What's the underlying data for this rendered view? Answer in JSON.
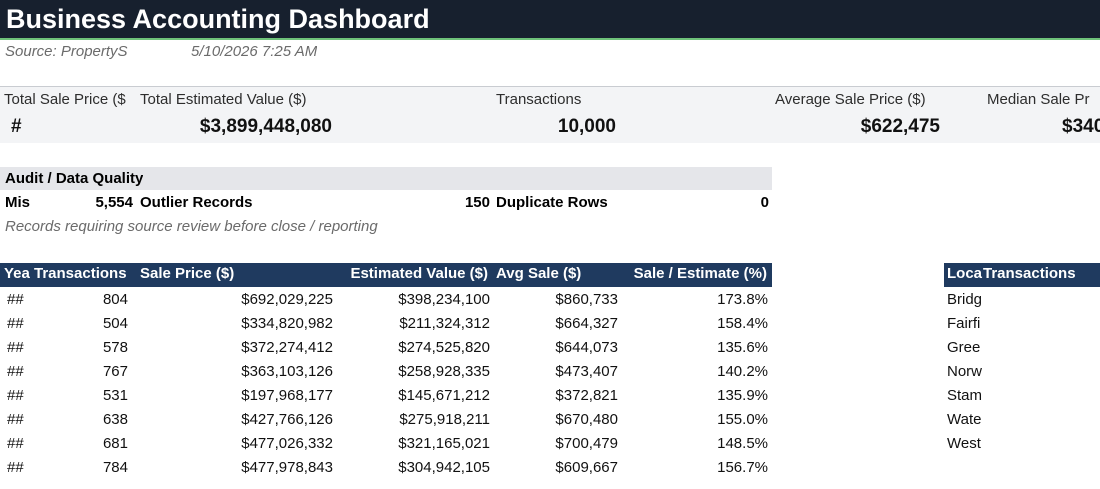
{
  "title": "Business Accounting Dashboard",
  "subtitle": {
    "source": "Source: PropertyS",
    "timestamp": "5/10/2026 7:25 AM"
  },
  "kpis": [
    {
      "label": "Total Sale Price ($",
      "value": "#"
    },
    {
      "label": "Total Estimated Value ($)",
      "value": "$3,899,448,080"
    },
    {
      "label": "Transactions",
      "value": "10,000"
    },
    {
      "label": "Average Sale Price ($)",
      "value": "$622,475"
    },
    {
      "label": "Median Sale Pr",
      "value": "$340"
    }
  ],
  "audit": {
    "header": "Audit / Data Quality",
    "missing_label": "Mis",
    "missing_value": "5,554",
    "outlier_label": "Outlier Records",
    "outlier_value": "150",
    "duplicate_label": "Duplicate Rows",
    "duplicate_value": "0",
    "note": "Records requiring source review before close / reporting"
  },
  "year_table": {
    "headers": [
      "Yea",
      "Transactions",
      "Sale Price ($)",
      "Estimated Value ($)",
      "Avg Sale ($)",
      "Sale / Estimate (%)"
    ],
    "rows": [
      [
        "##",
        "804",
        "$692,029,225",
        "$398,234,100",
        "$860,733",
        "173.8%"
      ],
      [
        "##",
        "504",
        "$334,820,982",
        "$211,324,312",
        "$664,327",
        "158.4%"
      ],
      [
        "##",
        "578",
        "$372,274,412",
        "$274,525,820",
        "$644,073",
        "135.6%"
      ],
      [
        "##",
        "767",
        "$363,103,126",
        "$258,928,335",
        "$473,407",
        "140.2%"
      ],
      [
        "##",
        "531",
        "$197,968,177",
        "$145,671,212",
        "$372,821",
        "135.9%"
      ],
      [
        "##",
        "638",
        "$427,766,126",
        "$275,918,211",
        "$670,480",
        "155.0%"
      ],
      [
        "##",
        "681",
        "$477,026,332",
        "$321,165,021",
        "$700,479",
        "148.5%"
      ],
      [
        "##",
        "784",
        "$477,978,843",
        "$304,942,105",
        "$609,667",
        "156.7%"
      ]
    ]
  },
  "location_table": {
    "headers": [
      "Loca",
      "Transactions"
    ],
    "rows": [
      "Bridg",
      "Fairfi",
      "Gree",
      "Norw",
      "Stam",
      "Wate",
      "West"
    ]
  }
}
